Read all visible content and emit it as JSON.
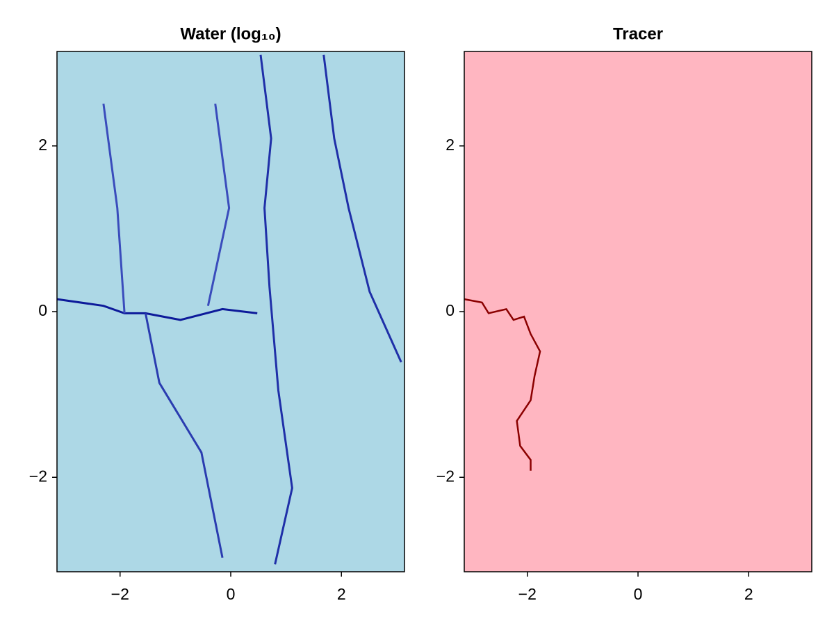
{
  "chart_data": [
    {
      "type": "line",
      "title": "Water (log₁₀)",
      "background": "#add8e6",
      "xlim": [
        -3.14,
        3.14
      ],
      "ylim": [
        -3.14,
        3.14
      ],
      "xticks": [
        {
          "value": -2,
          "label": "−2"
        },
        0,
        2
      ],
      "yticks": [
        {
          "value": -2,
          "label": "−2"
        },
        0,
        2
      ],
      "series": [
        {
          "color": "#0d1a9a",
          "x": [
            -3.14,
            -2.3,
            -1.92,
            -1.54,
            -0.91,
            -0.15,
            0.48
          ],
          "values": [
            0.15,
            0.07,
            -0.02,
            -0.02,
            -0.1,
            0.03,
            -0.02
          ]
        },
        {
          "color": "#1f2fa8",
          "x": [
            0.54,
            0.73,
            0.61,
            0.7,
            0.86,
            1.11,
            0.8
          ],
          "values": [
            3.1,
            2.09,
            1.25,
            0.3,
            -0.95,
            -2.13,
            -3.05
          ]
        },
        {
          "color": "#1f2fa8",
          "x": [
            1.68,
            1.87,
            2.13,
            2.51,
            3.08
          ],
          "values": [
            3.1,
            2.09,
            1.25,
            0.24,
            -0.61
          ]
        },
        {
          "color": "#2a3cb0",
          "x": [
            -1.54,
            -1.29,
            -0.53,
            -0.15
          ],
          "values": [
            -0.02,
            -0.86,
            -1.7,
            -2.97
          ]
        },
        {
          "color": "#3a4cbc",
          "x": [
            -1.92,
            -2.05,
            -2.3
          ],
          "values": [
            -0.02,
            1.25,
            2.51
          ]
        },
        {
          "color": "#3a4cbc",
          "x": [
            -0.41,
            -0.03,
            -0.28
          ],
          "values": [
            0.07,
            1.25,
            2.51
          ]
        }
      ]
    },
    {
      "type": "line",
      "title": "Tracer",
      "background": "#ffb6c1",
      "xlim": [
        -3.14,
        3.14
      ],
      "ylim": [
        -3.14,
        3.14
      ],
      "xticks": [
        {
          "value": -2,
          "label": "−2"
        },
        0,
        2
      ],
      "yticks": [
        {
          "value": -2,
          "label": "−2"
        },
        0,
        2
      ],
      "series": [
        {
          "color": "#8b0000",
          "x": [
            -3.14,
            -2.82,
            -2.7,
            -2.38,
            -2.25,
            -2.06,
            -1.94,
            -1.77,
            -1.87,
            -1.94,
            -2.19,
            -2.13,
            -1.94,
            -1.94
          ],
          "values": [
            0.15,
            0.11,
            -0.02,
            0.03,
            -0.1,
            -0.06,
            -0.27,
            -0.48,
            -0.78,
            -1.07,
            -1.32,
            -1.62,
            -1.79,
            -1.92
          ]
        }
      ]
    }
  ]
}
